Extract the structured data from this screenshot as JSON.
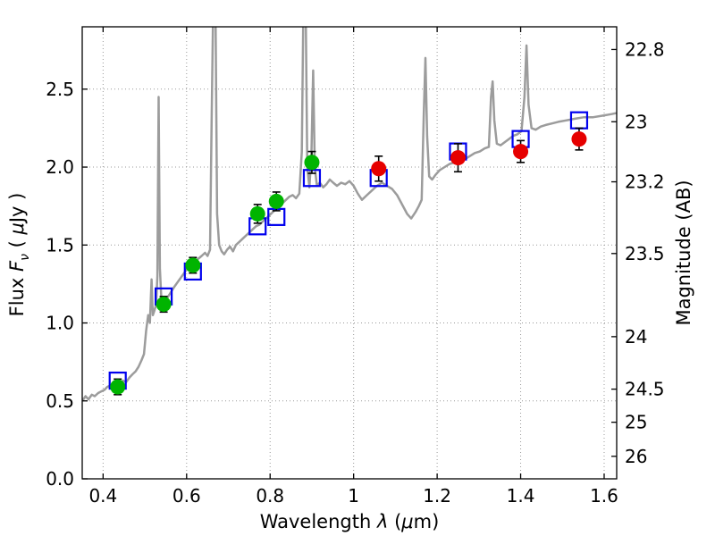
{
  "chart_data": {
    "type": "line",
    "title": "",
    "xlabel": "Wavelength λ (μm)",
    "ylabel_left": "Flux Fν ( μJy )",
    "ylabel_right": "Magnitude (AB)",
    "xlabel_parts": {
      "pre": "Wavelength ",
      "lambda": "λ",
      "mid": " (",
      "mu": "μ",
      "post": "m)"
    },
    "ylabel_left_parts": {
      "pre": "Flux ",
      "F": "F",
      "nu": "ν",
      "mid": " ( ",
      "mu": "μ",
      "post": "Jy )"
    },
    "xlim": [
      0.35,
      1.63
    ],
    "ylim": [
      0.0,
      2.9
    ],
    "grid": true,
    "x_ticks": [
      0.4,
      0.6,
      0.8,
      1.0,
      1.2,
      1.4,
      1.6
    ],
    "x_tick_labels": [
      "0.4",
      "0.6",
      "0.8",
      "1",
      "1.2",
      "1.4",
      "1.6"
    ],
    "y_ticks_left": [
      0.0,
      0.5,
      1.0,
      1.5,
      2.0,
      2.5
    ],
    "y_tick_labels_left": [
      "0.0",
      "0.5",
      "1.0",
      "1.5",
      "2.0",
      "2.5"
    ],
    "y_ticks_right_mag": [
      22.8,
      23,
      23.2,
      23.5,
      24,
      24.5,
      25,
      26
    ],
    "y_tick_labels_right": [
      "22.8",
      "23",
      "23.2",
      "23.5",
      "24",
      "24.5",
      "25",
      "26"
    ],
    "ab_zeropoint": 23.9,
    "colors": {
      "spectrum": "#9c9c9c",
      "model_squares": "#0000ee",
      "optical_points": "#00b400",
      "infrared_points": "#e60000",
      "error_bars": "#000000",
      "grid": "#999999"
    },
    "series": [
      {
        "name": "galaxy-spectrum",
        "marker": "line",
        "color": "#9c9c9c",
        "points": [
          [
            0.35,
            0.5
          ],
          [
            0.358,
            0.53
          ],
          [
            0.365,
            0.51
          ],
          [
            0.373,
            0.54
          ],
          [
            0.38,
            0.53
          ],
          [
            0.388,
            0.55
          ],
          [
            0.395,
            0.56
          ],
          [
            0.403,
            0.57
          ],
          [
            0.41,
            0.59
          ],
          [
            0.418,
            0.6
          ],
          [
            0.425,
            0.58
          ],
          [
            0.433,
            0.62
          ],
          [
            0.44,
            0.61
          ],
          [
            0.448,
            0.63
          ],
          [
            0.455,
            0.62
          ],
          [
            0.463,
            0.65
          ],
          [
            0.47,
            0.67
          ],
          [
            0.478,
            0.69
          ],
          [
            0.485,
            0.72
          ],
          [
            0.492,
            0.76
          ],
          [
            0.498,
            0.8
          ],
          [
            0.503,
            0.95
          ],
          [
            0.508,
            1.05
          ],
          [
            0.512,
            1.0
          ],
          [
            0.516,
            1.28
          ],
          [
            0.519,
            1.05
          ],
          [
            0.523,
            1.08
          ],
          [
            0.527,
            1.12
          ],
          [
            0.53,
            1.3
          ],
          [
            0.533,
            2.45
          ],
          [
            0.536,
            1.35
          ],
          [
            0.54,
            1.12
          ],
          [
            0.545,
            1.1
          ],
          [
            0.55,
            1.14
          ],
          [
            0.556,
            1.17
          ],
          [
            0.563,
            1.2
          ],
          [
            0.57,
            1.23
          ],
          [
            0.578,
            1.26
          ],
          [
            0.586,
            1.29
          ],
          [
            0.594,
            1.32
          ],
          [
            0.602,
            1.35
          ],
          [
            0.61,
            1.37
          ],
          [
            0.618,
            1.39
          ],
          [
            0.627,
            1.41
          ],
          [
            0.636,
            1.43
          ],
          [
            0.644,
            1.45
          ],
          [
            0.65,
            1.43
          ],
          [
            0.656,
            1.47
          ],
          [
            0.66,
            2.3
          ],
          [
            0.664,
            3.1
          ],
          [
            0.669,
            3.1
          ],
          [
            0.673,
            1.7
          ],
          [
            0.678,
            1.5
          ],
          [
            0.684,
            1.46
          ],
          [
            0.69,
            1.44
          ],
          [
            0.697,
            1.47
          ],
          [
            0.704,
            1.49
          ],
          [
            0.711,
            1.46
          ],
          [
            0.718,
            1.5
          ],
          [
            0.726,
            1.52
          ],
          [
            0.734,
            1.54
          ],
          [
            0.742,
            1.56
          ],
          [
            0.75,
            1.58
          ],
          [
            0.758,
            1.6
          ],
          [
            0.766,
            1.62
          ],
          [
            0.774,
            1.63
          ],
          [
            0.782,
            1.65
          ],
          [
            0.79,
            1.67
          ],
          [
            0.798,
            1.69
          ],
          [
            0.806,
            1.71
          ],
          [
            0.814,
            1.73
          ],
          [
            0.822,
            1.75
          ],
          [
            0.83,
            1.77
          ],
          [
            0.838,
            1.79
          ],
          [
            0.846,
            1.81
          ],
          [
            0.854,
            1.82
          ],
          [
            0.862,
            1.8
          ],
          [
            0.87,
            1.83
          ],
          [
            0.876,
            2.1
          ],
          [
            0.88,
            3.1
          ],
          [
            0.885,
            3.1
          ],
          [
            0.889,
            2.0
          ],
          [
            0.894,
            1.87
          ],
          [
            0.899,
            2.1
          ],
          [
            0.903,
            2.62
          ],
          [
            0.907,
            2.0
          ],
          [
            0.912,
            1.88
          ],
          [
            0.919,
            1.9
          ],
          [
            0.927,
            1.87
          ],
          [
            0.935,
            1.89
          ],
          [
            0.943,
            1.92
          ],
          [
            0.951,
            1.9
          ],
          [
            0.96,
            1.88
          ],
          [
            0.97,
            1.9
          ],
          [
            0.98,
            1.89
          ],
          [
            0.99,
            1.91
          ],
          [
            1.0,
            1.88
          ],
          [
            1.01,
            1.83
          ],
          [
            1.02,
            1.79
          ],
          [
            1.032,
            1.82
          ],
          [
            1.044,
            1.85
          ],
          [
            1.056,
            1.88
          ],
          [
            1.068,
            1.9
          ],
          [
            1.08,
            1.88
          ],
          [
            1.092,
            1.86
          ],
          [
            1.104,
            1.82
          ],
          [
            1.116,
            1.76
          ],
          [
            1.128,
            1.7
          ],
          [
            1.138,
            1.67
          ],
          [
            1.148,
            1.71
          ],
          [
            1.156,
            1.75
          ],
          [
            1.163,
            1.79
          ],
          [
            1.168,
            2.35
          ],
          [
            1.172,
            2.7
          ],
          [
            1.176,
            2.2
          ],
          [
            1.181,
            1.94
          ],
          [
            1.188,
            1.92
          ],
          [
            1.196,
            1.95
          ],
          [
            1.206,
            1.98
          ],
          [
            1.218,
            2.0
          ],
          [
            1.23,
            2.02
          ],
          [
            1.242,
            2.03
          ],
          [
            1.254,
            2.02
          ],
          [
            1.266,
            2.05
          ],
          [
            1.278,
            2.07
          ],
          [
            1.29,
            2.09
          ],
          [
            1.302,
            2.1
          ],
          [
            1.314,
            2.12
          ],
          [
            1.324,
            2.13
          ],
          [
            1.329,
            2.45
          ],
          [
            1.333,
            2.55
          ],
          [
            1.337,
            2.3
          ],
          [
            1.343,
            2.15
          ],
          [
            1.352,
            2.14
          ],
          [
            1.362,
            2.16
          ],
          [
            1.372,
            2.18
          ],
          [
            1.382,
            2.2
          ],
          [
            1.392,
            2.21
          ],
          [
            1.402,
            2.23
          ],
          [
            1.409,
            2.45
          ],
          [
            1.414,
            2.78
          ],
          [
            1.419,
            2.4
          ],
          [
            1.426,
            2.25
          ],
          [
            1.436,
            2.24
          ],
          [
            1.448,
            2.26
          ],
          [
            1.46,
            2.27
          ],
          [
            1.475,
            2.28
          ],
          [
            1.49,
            2.29
          ],
          [
            1.51,
            2.3
          ],
          [
            1.53,
            2.31
          ],
          [
            1.552,
            2.32
          ],
          [
            1.574,
            2.32
          ],
          [
            1.596,
            2.33
          ],
          [
            1.618,
            2.34
          ],
          [
            1.635,
            2.35
          ]
        ]
      },
      {
        "name": "model-photometry",
        "marker": "open-square",
        "color": "#0000ee",
        "x": [
          0.435,
          0.545,
          0.615,
          0.77,
          0.815,
          0.9,
          1.06,
          1.25,
          1.4,
          1.54
        ],
        "y": [
          0.63,
          1.17,
          1.33,
          1.62,
          1.68,
          1.93,
          1.93,
          2.1,
          2.18,
          2.3
        ]
      },
      {
        "name": "observed-optical",
        "marker": "circle",
        "color": "#00b400",
        "x": [
          0.435,
          0.545,
          0.615,
          0.77,
          0.815,
          0.9
        ],
        "y": [
          0.59,
          1.12,
          1.37,
          1.7,
          1.78,
          2.03
        ],
        "yerr": [
          0.05,
          0.05,
          0.05,
          0.06,
          0.06,
          0.07
        ]
      },
      {
        "name": "observed-infrared",
        "marker": "circle",
        "color": "#e60000",
        "x": [
          1.06,
          1.25,
          1.4,
          1.54
        ],
        "y": [
          1.99,
          2.06,
          2.1,
          2.18
        ],
        "yerr": [
          0.08,
          0.09,
          0.07,
          0.07
        ]
      }
    ]
  }
}
